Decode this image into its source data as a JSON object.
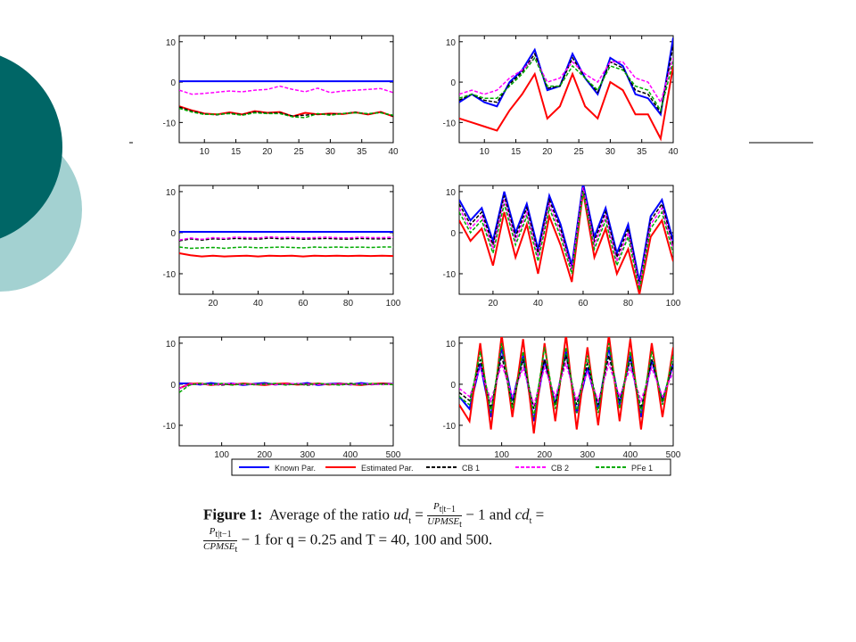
{
  "legend": {
    "entries": [
      {
        "name": "Known Par.",
        "color": "#0000ff",
        "dash": "none"
      },
      {
        "name": "Estimated Par.",
        "color": "#ff0000",
        "dash": "none"
      },
      {
        "name": "CB 1",
        "color": "#000000",
        "dash": "4 2"
      },
      {
        "name": "CB 2",
        "color": "#ff00ff",
        "dash": "4 2"
      },
      {
        "name": "PFe 1",
        "color": "#00aa00",
        "dash": "4 2"
      }
    ]
  },
  "chart_data": [
    {
      "type": "line",
      "x": [
        6,
        8,
        10,
        12,
        14,
        16,
        18,
        20,
        22,
        24,
        26,
        28,
        30,
        32,
        34,
        36,
        38,
        40
      ],
      "xlim": [
        6,
        40
      ],
      "ylim": [
        -15,
        11.5
      ],
      "xticks": [
        10,
        15,
        20,
        25,
        30,
        35,
        40
      ],
      "yticks": [
        -10,
        0,
        10
      ],
      "series": [
        {
          "values": [
            0.2,
            0.2,
            0.2,
            0.2,
            0.2,
            0.2,
            0.2,
            0.2,
            0.2,
            0.2,
            0.2,
            0.2,
            0.2,
            0.2,
            0.2,
            0.2,
            0.2,
            0.2
          ]
        },
        {
          "values": [
            -6,
            -7,
            -7.8,
            -8,
            -7.5,
            -8,
            -7.2,
            -7.6,
            -7.4,
            -8.5,
            -7.6,
            -8,
            -7.8,
            -7.9,
            -7.5,
            -8,
            -7.4,
            -8.5
          ]
        },
        {
          "values": [
            -6.2,
            -7.2,
            -7.9,
            -8.1,
            -7.7,
            -8.1,
            -7.4,
            -7.7,
            -7.6,
            -8.4,
            -8.2,
            -7.9,
            -8,
            -7.8,
            -7.5,
            -7.9,
            -7.5,
            -8.4
          ]
        },
        {
          "values": [
            -2,
            -3,
            -2.8,
            -2.5,
            -2.2,
            -2.4,
            -2,
            -1.8,
            -1,
            -1.8,
            -2.4,
            -1.5,
            -2.6,
            -2.2,
            -2,
            -1.8,
            -1.6,
            -2.6
          ]
        },
        {
          "values": [
            -6.5,
            -7.4,
            -8,
            -8,
            -7.8,
            -8.2,
            -7.6,
            -7.8,
            -7.8,
            -8.6,
            -8.8,
            -7.8,
            -8.2,
            -7.8,
            -7.6,
            -7.8,
            -7.6,
            -8.2
          ]
        }
      ]
    },
    {
      "type": "line",
      "x": [
        6,
        8,
        10,
        12,
        14,
        16,
        18,
        20,
        22,
        24,
        26,
        28,
        30,
        32,
        34,
        36,
        38,
        40
      ],
      "xlim": [
        6,
        40
      ],
      "ylim": [
        -15,
        11.5
      ],
      "xticks": [
        10,
        15,
        20,
        25,
        30,
        35,
        40
      ],
      "yticks": [
        -10,
        0,
        10
      ],
      "series": [
        {
          "values": [
            -5,
            -3,
            -5,
            -6,
            0,
            3,
            8,
            -2,
            -1,
            7,
            1,
            -3,
            6,
            4,
            -3,
            -4,
            -8,
            11
          ]
        },
        {
          "values": [
            -9,
            -10,
            -11,
            -12,
            -7,
            -3,
            2,
            -9,
            -6,
            2,
            -6,
            -9,
            0,
            -2,
            -8,
            -8,
            -14,
            4
          ]
        },
        {
          "values": [
            -4.5,
            -3,
            -4.5,
            -5,
            -0.5,
            2.5,
            7,
            -1.5,
            -1,
            6,
            1,
            -2.5,
            5,
            3.5,
            -2,
            -3,
            -7.5,
            9
          ]
        },
        {
          "values": [
            -3,
            -2,
            -3,
            -2,
            1,
            3,
            6,
            0,
            1,
            5,
            2,
            0,
            5,
            5,
            1,
            0,
            -5,
            6
          ]
        },
        {
          "values": [
            -4,
            -3,
            -4,
            -4,
            -1,
            2,
            6,
            -1,
            -1,
            4,
            1,
            -2,
            4,
            3,
            -1,
            -2,
            -7,
            5
          ]
        }
      ]
    },
    {
      "type": "line",
      "x": [
        5,
        10,
        15,
        20,
        25,
        30,
        35,
        40,
        45,
        50,
        55,
        60,
        65,
        70,
        75,
        80,
        85,
        90,
        95,
        100
      ],
      "xlim": [
        5,
        100
      ],
      "ylim": [
        -15,
        11.5
      ],
      "xticks": [
        20,
        40,
        60,
        80,
        100
      ],
      "yticks": [
        -10,
        0,
        10
      ],
      "series": [
        {
          "values": [
            0.2,
            0.2,
            0.2,
            0.2,
            0.2,
            0.2,
            0.2,
            0.2,
            0.2,
            0.2,
            0.2,
            0.2,
            0.2,
            0.2,
            0.2,
            0.2,
            0.2,
            0.2,
            0.2,
            0.2
          ]
        },
        {
          "values": [
            -5,
            -5.5,
            -5.8,
            -5.6,
            -5.8,
            -5.7,
            -5.6,
            -5.8,
            -5.6,
            -5.7,
            -5.6,
            -5.8,
            -5.6,
            -5.7,
            -5.6,
            -5.7,
            -5.6,
            -5.7,
            -5.6,
            -5.7
          ]
        },
        {
          "values": [
            -2,
            -1.5,
            -1.8,
            -1.5,
            -1.6,
            -1.4,
            -1.5,
            -1.6,
            -1.3,
            -1.5,
            -1.4,
            -1.6,
            -1.5,
            -1.4,
            -1.5,
            -1.6,
            -1.4,
            -1.5,
            -1.5,
            -1.4
          ]
        },
        {
          "values": [
            -1.8,
            -1.3,
            -1.6,
            -1.2,
            -1.4,
            -1.1,
            -1.2,
            -1.3,
            -1,
            -1.2,
            -1.1,
            -1.3,
            -1.2,
            -1.1,
            -1.2,
            -1.3,
            -1.1,
            -1.2,
            -1.2,
            -1.1
          ]
        },
        {
          "values": [
            -3.5,
            -3.8,
            -3.7,
            -3.6,
            -3.8,
            -3.6,
            -3.5,
            -3.7,
            -3.6,
            -3.5,
            -3.6,
            -3.7,
            -3.5,
            -3.6,
            -3.5,
            -3.6,
            -3.5,
            -3.6,
            -3.5,
            -3.5
          ]
        }
      ]
    },
    {
      "type": "line",
      "x": [
        5,
        10,
        15,
        20,
        25,
        30,
        35,
        40,
        45,
        50,
        55,
        60,
        65,
        70,
        75,
        80,
        85,
        90,
        95,
        100
      ],
      "xlim": [
        5,
        100
      ],
      "ylim": [
        -15,
        11.5
      ],
      "xticks": [
        20,
        40,
        60,
        80,
        100
      ],
      "yticks": [
        -10,
        0,
        10
      ],
      "series": [
        {
          "values": [
            8,
            3,
            6,
            -2,
            10,
            0,
            7,
            -4,
            9,
            2,
            -8,
            12,
            -1,
            6,
            -5,
            2,
            -12,
            4,
            8,
            -2
          ]
        },
        {
          "values": [
            3,
            -2,
            1,
            -8,
            5,
            -6,
            2,
            -10,
            4,
            -3,
            -12,
            10,
            -6,
            1,
            -10,
            -4,
            -15,
            -1,
            3,
            -7
          ]
        },
        {
          "values": [
            7,
            2,
            5,
            -3,
            9,
            -1,
            6,
            -5,
            8,
            1,
            -9,
            11,
            -2,
            5,
            -6,
            1,
            -13,
            3,
            7,
            -3
          ]
        },
        {
          "values": [
            6,
            1,
            4,
            -4,
            8,
            -2,
            5,
            -6,
            7,
            0,
            -9,
            11,
            -3,
            4,
            -7,
            0,
            -13,
            2,
            6,
            -4
          ]
        },
        {
          "values": [
            5,
            0,
            3,
            -5,
            7,
            -3,
            4,
            -7,
            6,
            -1,
            -10,
            10,
            -4,
            3,
            -8,
            -1,
            -14,
            1,
            5,
            -5
          ]
        }
      ]
    },
    {
      "type": "line",
      "x": [
        1,
        25,
        50,
        75,
        100,
        125,
        150,
        175,
        200,
        225,
        250,
        275,
        300,
        325,
        350,
        375,
        400,
        425,
        450,
        475,
        500
      ],
      "xlim": [
        1,
        500
      ],
      "ylim": [
        -15,
        11.5
      ],
      "xticks": [
        100,
        200,
        300,
        400,
        500
      ],
      "yticks": [
        -10,
        0,
        10
      ],
      "series": [
        {
          "values": [
            0.2,
            0.2,
            -0.1,
            0.3,
            0,
            0.2,
            -0.2,
            0.1,
            0.3,
            -0.1,
            0.2,
            0,
            0.3,
            -0.2,
            0.1,
            0.2,
            -0.1,
            0.3,
            0,
            0.2,
            0.1
          ]
        },
        {
          "values": [
            -1,
            0.1,
            0.2,
            -0.2,
            0.1,
            -0.1,
            0.2,
            0,
            -0.2,
            0.1,
            0.2,
            -0.1,
            0,
            0.2,
            -0.1,
            0.1,
            0,
            -0.2,
            0.1,
            0.2,
            0
          ]
        },
        {
          "values": [
            -1,
            -0.1,
            0.1,
            0,
            -0.2,
            0.1,
            0,
            -0.1,
            0.2,
            0,
            -0.1,
            0.1,
            -0.2,
            0,
            0.1,
            -0.1,
            0.2,
            0,
            -0.1,
            0.1,
            0
          ]
        },
        {
          "values": [
            -1,
            0,
            0.1,
            -0.1,
            0,
            0.2,
            -0.1,
            0,
            0.1,
            -0.1,
            0,
            0.2,
            0,
            -0.1,
            0.1,
            0,
            -0.1,
            0.1,
            0,
            -0.1,
            0.1
          ]
        },
        {
          "values": [
            -2,
            -0.2,
            0.2,
            -0.1,
            0.2,
            -0.2,
            0.1,
            -0.1,
            0,
            0.2,
            -0.2,
            0.1,
            -0.1,
            0.2,
            0,
            -0.2,
            0.1,
            -0.1,
            0.2,
            0,
            -0.1
          ]
        }
      ]
    },
    {
      "type": "line",
      "x": [
        1,
        25,
        50,
        75,
        100,
        125,
        150,
        175,
        200,
        225,
        250,
        275,
        300,
        325,
        350,
        375,
        400,
        425,
        450,
        475,
        500
      ],
      "xlim": [
        1,
        500
      ],
      "ylim": [
        -15,
        11.5
      ],
      "xticks": [
        100,
        200,
        300,
        400,
        500
      ],
      "yticks": [
        -10,
        0,
        10
      ],
      "series": [
        {
          "values": [
            -3,
            -6,
            5,
            -8,
            9,
            -4,
            7,
            -9,
            6,
            -5,
            8,
            -7,
            4,
            -6,
            9,
            -5,
            7,
            -8,
            6,
            -4,
            5
          ]
        },
        {
          "values": [
            -5,
            -9,
            10,
            -11,
            12,
            -8,
            11,
            -12,
            10,
            -9,
            12,
            -11,
            9,
            -10,
            12,
            -9,
            11,
            -11,
            10,
            -8,
            9
          ]
        },
        {
          "values": [
            -2,
            -4,
            6,
            -6,
            7,
            -5,
            6,
            -6,
            6,
            -5,
            7,
            -5,
            5,
            -5,
            7,
            -4,
            6,
            -6,
            6,
            -4,
            5
          ]
        },
        {
          "values": [
            -1,
            -3,
            4,
            -4,
            5,
            -3,
            4,
            -5,
            4,
            -3,
            5,
            -4,
            3,
            -4,
            5,
            -3,
            4,
            -4,
            4,
            -3,
            3
          ]
        },
        {
          "values": [
            -3,
            -5,
            8,
            -7,
            10,
            -6,
            8,
            -8,
            9,
            -6,
            9,
            -7,
            7,
            -7,
            10,
            -6,
            8,
            -7,
            8,
            -5,
            7
          ]
        }
      ]
    }
  ],
  "caption": {
    "label": "Figure 1:",
    "lead": "Average of the ratio",
    "lhs1": "ud",
    "lhs2": "cd",
    "sub": "t",
    "eq": "=",
    "num": "P",
    "num_sub": "t|t−1",
    "den1": "UPMSE",
    "den2": "CPMSE",
    "tail1": "− 1 and",
    "tail2": "− 1 for q = 0.25 and T = 40, 100 and 500."
  }
}
